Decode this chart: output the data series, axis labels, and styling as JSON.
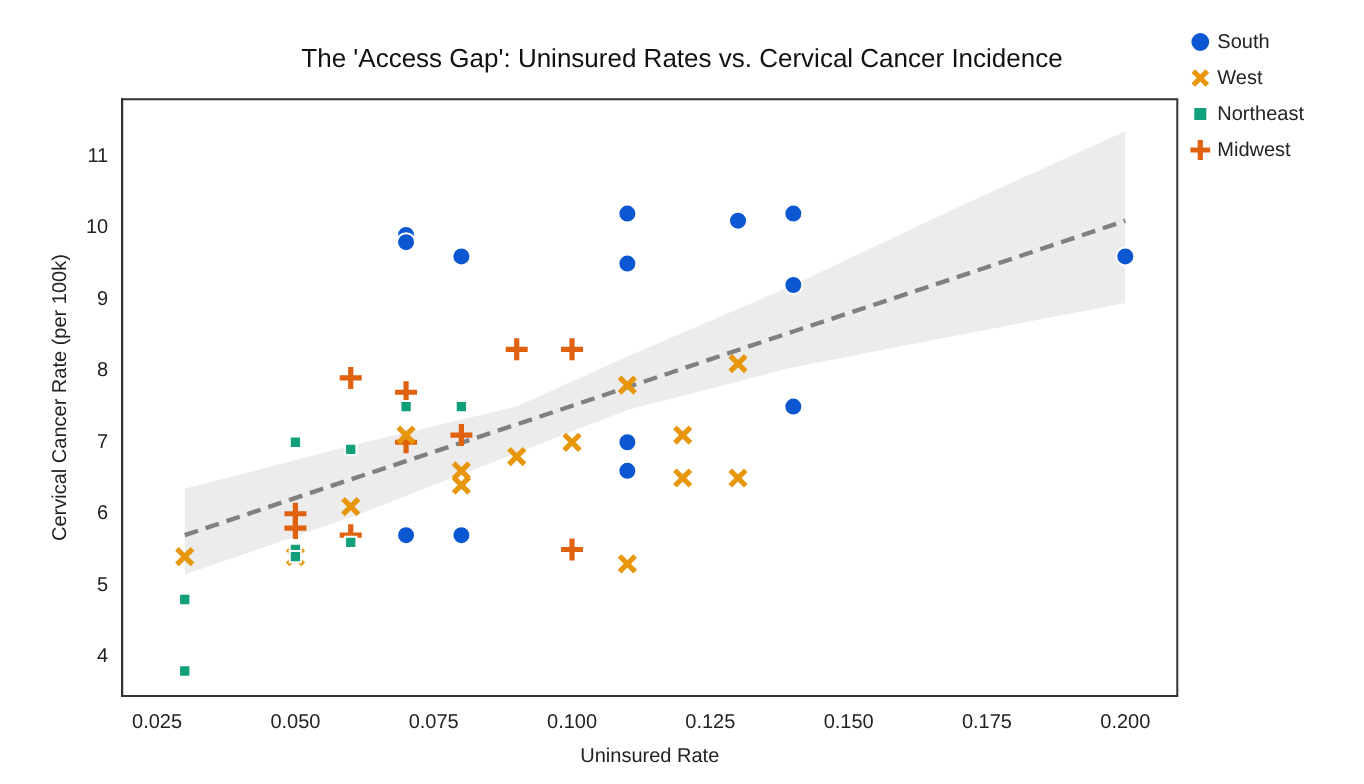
{
  "chart_data": {
    "type": "scatter",
    "title": "The 'Access Gap': Uninsured Rates vs. Cervical Cancer Incidence",
    "xlabel": "Uninsured Rate",
    "ylabel": "Cervical Cancer Rate (per 100k)",
    "xlim": [
      0.0187,
      0.2094
    ],
    "ylim": [
      3.45,
      11.8
    ],
    "xticks": [
      {
        "value": 0.025,
        "label": "0.025"
      },
      {
        "value": 0.05,
        "label": "0.050"
      },
      {
        "value": 0.075,
        "label": "0.075"
      },
      {
        "value": 0.1,
        "label": "0.100"
      },
      {
        "value": 0.125,
        "label": "0.125"
      },
      {
        "value": 0.15,
        "label": "0.150"
      },
      {
        "value": 0.175,
        "label": "0.175"
      },
      {
        "value": 0.2,
        "label": "0.200"
      }
    ],
    "yticks": [
      4,
      5,
      6,
      7,
      8,
      9,
      10,
      11
    ],
    "grid": false,
    "legend": "top right",
    "series": [
      {
        "name": "South",
        "color": "#0b56d1",
        "marker": "circle",
        "x": [
          0.07,
          0.07,
          0.08,
          0.11,
          0.11,
          0.13,
          0.14,
          0.14,
          0.2,
          0.14,
          0.11,
          0.11,
          0.07,
          0.08
        ],
        "values": [
          9.9,
          9.8,
          9.6,
          10.2,
          9.5,
          10.1,
          10.2,
          9.2,
          9.6,
          7.5,
          7.0,
          6.6,
          5.7,
          5.7
        ]
      },
      {
        "name": "West",
        "color": "#e8960c",
        "marker": "x",
        "x": [
          0.03,
          0.05,
          0.06,
          0.07,
          0.08,
          0.08,
          0.09,
          0.1,
          0.11,
          0.12,
          0.12,
          0.13,
          0.13,
          0.11
        ],
        "values": [
          5.4,
          5.4,
          6.1,
          7.1,
          6.6,
          6.4,
          6.8,
          7.0,
          7.8,
          7.1,
          6.5,
          6.5,
          8.1,
          5.3
        ]
      },
      {
        "name": "Northeast",
        "color": "#12a07a",
        "marker": "square",
        "x": [
          0.03,
          0.03,
          0.05,
          0.05,
          0.05,
          0.06,
          0.06,
          0.07,
          0.08
        ],
        "values": [
          4.8,
          3.8,
          7.0,
          5.5,
          5.4,
          6.9,
          5.6,
          7.5,
          7.5
        ]
      },
      {
        "name": "Midwest",
        "color": "#e0620f",
        "marker": "cross",
        "x": [
          0.05,
          0.05,
          0.06,
          0.06,
          0.07,
          0.07,
          0.08,
          0.09,
          0.1,
          0.1
        ],
        "values": [
          6.0,
          5.8,
          7.9,
          5.7,
          7.7,
          7.0,
          7.1,
          8.3,
          8.3,
          5.5
        ]
      },
      {
        "type": "line",
        "color": "#808080",
        "line_style": "dashed",
        "marker": "none",
        "x": [
          0.03,
          0.06,
          0.09,
          0.11,
          0.14,
          0.17,
          0.2
        ],
        "values": [
          5.7,
          6.48,
          7.25,
          7.77,
          8.55,
          9.32,
          10.1
        ],
        "lower": [
          5.15,
          5.95,
          6.85,
          7.45,
          8.05,
          8.5,
          8.95
        ],
        "upper": [
          6.35,
          6.95,
          7.5,
          8.2,
          9.2,
          10.3,
          11.35
        ]
      }
    ]
  }
}
